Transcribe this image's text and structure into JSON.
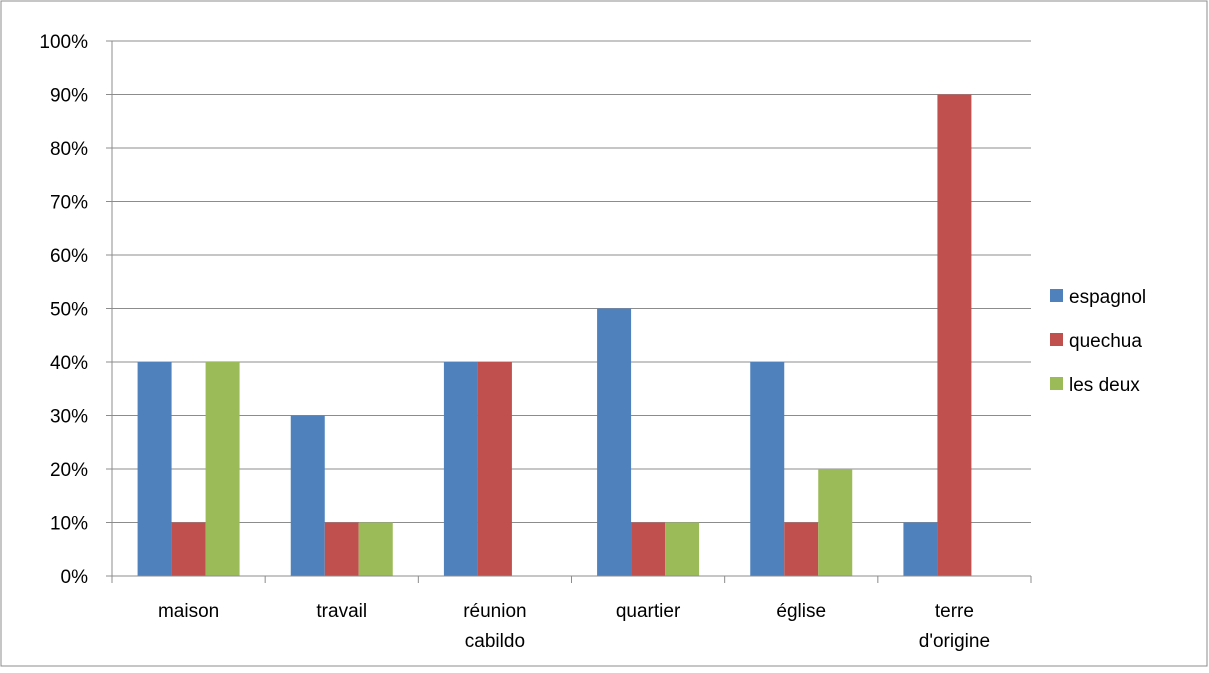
{
  "chart_data": {
    "type": "bar",
    "categories": [
      [
        "maison"
      ],
      [
        "travail"
      ],
      [
        "réunion",
        "cabildo"
      ],
      [
        "quartier"
      ],
      [
        "église"
      ],
      [
        "terre",
        "d'origine"
      ]
    ],
    "series": [
      {
        "name": "espagnol",
        "color": "#4F81BD",
        "values": [
          40,
          30,
          40,
          50,
          40,
          10
        ]
      },
      {
        "name": "quechua",
        "color": "#C0504D",
        "values": [
          10,
          10,
          40,
          10,
          10,
          90
        ]
      },
      {
        "name": "les deux",
        "color": "#9BBB59",
        "values": [
          40,
          10,
          0,
          10,
          20,
          0
        ]
      }
    ],
    "ylim": [
      0,
      100
    ],
    "yticks": [
      "0%",
      "10%",
      "20%",
      "30%",
      "40%",
      "50%",
      "60%",
      "70%",
      "80%",
      "90%",
      "100%"
    ],
    "grid": true,
    "legend_position": "right"
  }
}
